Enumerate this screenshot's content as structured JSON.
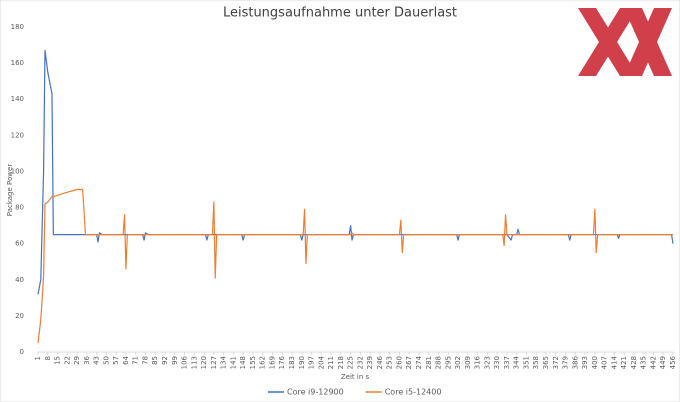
{
  "chart_data": {
    "type": "line",
    "title": "Leistungsaufnahme unter Dauerlast",
    "x_label": "Zeit in s",
    "y_label": "Package Power",
    "x": [
      1,
      3,
      5,
      6,
      8,
      10,
      11,
      12,
      20,
      29,
      33,
      35,
      43,
      44,
      45,
      47,
      62,
      63,
      64,
      65,
      76,
      77,
      78,
      80,
      121,
      122,
      123,
      126,
      127,
      128,
      129,
      147,
      148,
      149,
      189,
      190,
      191,
      192,
      193,
      194,
      224,
      225,
      226,
      227,
      260,
      261,
      262,
      263,
      301,
      302,
      303,
      334,
      335,
      336,
      337,
      340,
      341,
      344,
      345,
      346,
      381,
      382,
      383,
      399,
      400,
      401,
      402,
      416,
      417,
      418,
      455,
      456
    ],
    "series": [
      {
        "name": "Core i9-12900",
        "color": "#4472c4",
        "values": [
          32,
          40,
          100,
          167,
          155,
          147,
          143,
          65,
          65,
          65,
          65,
          65,
          65,
          61,
          66,
          65,
          65,
          65,
          65,
          65,
          65,
          62,
          66,
          65,
          65,
          62,
          65,
          65,
          65,
          65,
          65,
          65,
          62,
          65,
          65,
          62,
          65,
          65,
          65,
          65,
          65,
          70,
          62,
          65,
          65,
          65,
          65,
          65,
          65,
          62,
          65,
          65,
          65,
          65,
          65,
          62,
          65,
          65,
          68,
          65,
          65,
          62,
          65,
          65,
          65,
          65,
          65,
          65,
          63,
          65,
          65,
          60
        ]
      },
      {
        "name": "Core i5-12400",
        "color": "#ed7d31",
        "values": [
          5,
          18,
          42,
          82,
          83,
          85,
          86,
          86,
          88,
          90,
          90,
          65,
          65,
          65,
          65,
          65,
          65,
          76,
          46,
          65,
          65,
          65,
          65,
          65,
          65,
          65,
          65,
          65,
          83,
          41,
          65,
          65,
          65,
          65,
          65,
          65,
          65,
          79,
          49,
          65,
          65,
          65,
          66,
          65,
          65,
          73,
          55,
          65,
          65,
          65,
          65,
          65,
          59,
          76,
          65,
          65,
          65,
          65,
          65,
          65,
          65,
          65,
          65,
          65,
          79,
          55,
          65,
          65,
          65,
          65,
          65,
          65
        ]
      }
    ],
    "xlim": [
      1,
      456
    ],
    "xticks": [
      1,
      8,
      15,
      22,
      29,
      36,
      43,
      50,
      57,
      64,
      71,
      78,
      85,
      92,
      99,
      106,
      113,
      120,
      127,
      134,
      141,
      148,
      155,
      162,
      169,
      176,
      183,
      190,
      197,
      204,
      211,
      218,
      225,
      232,
      239,
      246,
      253,
      260,
      267,
      274,
      281,
      288,
      295,
      302,
      309,
      316,
      323,
      330,
      337,
      344,
      351,
      358,
      365,
      372,
      379,
      386,
      393,
      400,
      407,
      414,
      421,
      428,
      435,
      442,
      449,
      456
    ],
    "ylim": [
      0,
      180
    ],
    "yticks": [
      0,
      20,
      40,
      60,
      80,
      100,
      120,
      140,
      160,
      180
    ],
    "legend": "bottom"
  }
}
